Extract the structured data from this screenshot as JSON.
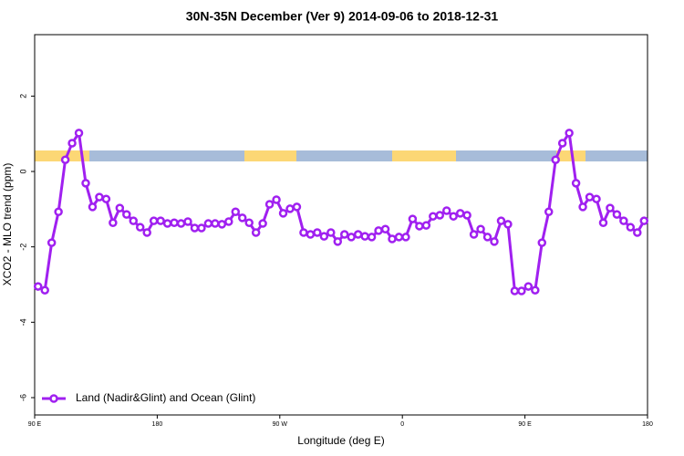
{
  "chart_data": {
    "type": "line",
    "title": "30N-35N December (Ver 9)   2014-09-06 to 2018-12-31",
    "x_label": "Longitude (deg E)",
    "y_label": "XCO2 - MLO trend (ppm)",
    "x": [
      92.5,
      97.5,
      102.5,
      107.5,
      112.5,
      117.5,
      122.5,
      127.5,
      132.5,
      137.5,
      142.5,
      147.5,
      152.5,
      157.5,
      162.5,
      167.5,
      172.5,
      177.5,
      182.5,
      187.5,
      192.5,
      197.5,
      202.5,
      207.5,
      212.5,
      217.5,
      222.5,
      227.5,
      232.5,
      237.5,
      242.5,
      247.5,
      252.5,
      257.5,
      262.5,
      267.5,
      272.5,
      277.5,
      282.5,
      287.5,
      292.5,
      297.5,
      302.5,
      307.5,
      312.5,
      317.5,
      322.5,
      327.5,
      332.5,
      337.5,
      342.5,
      347.5,
      352.5,
      357.5,
      362.5,
      367.5,
      372.5,
      377.5,
      382.5,
      387.5,
      392.5,
      397.5,
      402.5,
      407.5,
      412.5,
      417.5,
      422.5,
      427.5,
      432.5,
      437.5,
      442.5,
      447.5,
      452.5,
      457.5,
      462.5,
      467.5,
      472.5,
      477.5,
      482.5,
      487.5,
      492.5,
      497.5,
      502.5,
      507.5,
      512.5,
      517.5,
      522.5,
      527.5,
      532.5,
      537.5
    ],
    "series": [
      {
        "name": "Land (Nadir&Glint) and Ocean (Glint)",
        "color": "#a020f0",
        "values": [
          -3.05,
          -3.15,
          -1.89,
          -1.07,
          0.31,
          0.75,
          1.02,
          -0.31,
          -0.94,
          -0.68,
          -0.73,
          -1.36,
          -0.97,
          -1.14,
          -1.31,
          -1.48,
          -1.62,
          -1.31,
          -1.31,
          -1.38,
          -1.36,
          -1.38,
          -1.33,
          -1.5,
          -1.5,
          -1.38,
          -1.38,
          -1.4,
          -1.33,
          -1.07,
          -1.23,
          -1.36,
          -1.62,
          -1.38,
          -0.87,
          -0.75,
          -1.11,
          -0.99,
          -0.94,
          -1.62,
          -1.67,
          -1.62,
          -1.72,
          -1.62,
          -1.86,
          -1.67,
          -1.74,
          -1.67,
          -1.72,
          -1.74,
          -1.57,
          -1.53,
          -1.79,
          -1.74,
          -1.74,
          -1.26,
          -1.45,
          -1.43,
          -1.19,
          -1.16,
          -1.04,
          -1.19,
          -1.11,
          -1.16,
          -1.67,
          -1.53,
          -1.74,
          -1.86,
          -1.31,
          -1.4,
          -3.17,
          -3.17,
          -3.05,
          -3.15,
          -1.89,
          -1.07,
          0.31,
          0.75,
          1.02,
          -0.31,
          -0.94,
          -0.68,
          -0.73,
          -1.36,
          -0.97,
          -1.14,
          -1.31,
          -1.48,
          -1.62,
          -1.31
        ]
      }
    ],
    "xlim": [
      90,
      540
    ],
    "xticks": [
      {
        "value": 90,
        "label": "90 E"
      },
      180,
      {
        "value": 270,
        "label": "90 W"
      },
      {
        "value": 360,
        "label": "0"
      },
      {
        "value": 450,
        "label": "90 E"
      },
      {
        "value": 540,
        "label": "180"
      }
    ],
    "ylim": [
      -6.46,
      3.63
    ],
    "yticks": [
      -6,
      -4,
      -2,
      0,
      2
    ],
    "legend": "bottom-left"
  }
}
